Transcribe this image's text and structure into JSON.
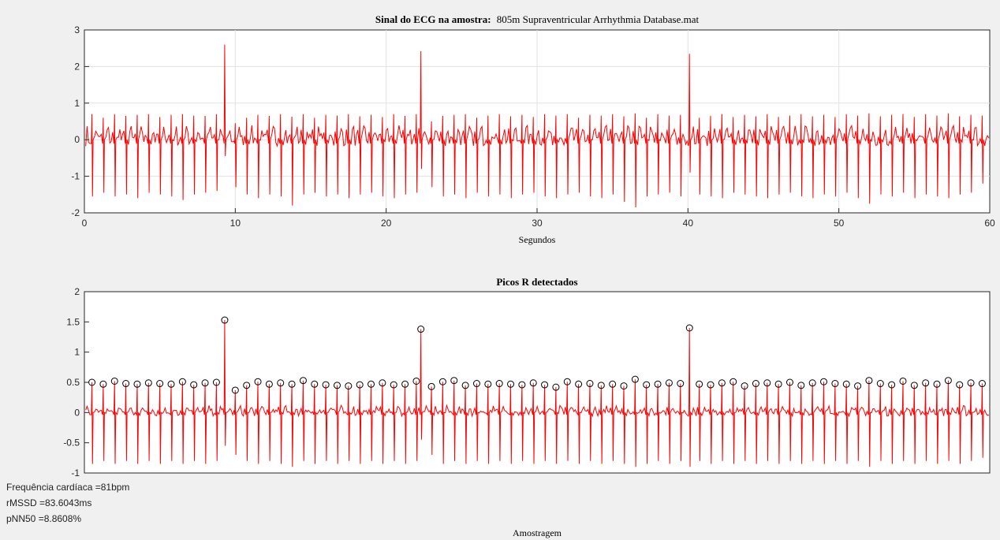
{
  "figure": {
    "background": "#f0f0f0",
    "axes_background": "#ffffff",
    "line_color": "#ff0000",
    "marker_color": "#000000",
    "grid_color": "#e1e1e1"
  },
  "stats": {
    "heart_rate": "Frequência cardíaca =81bpm",
    "rmssd": "rMSSD =83.6043ms",
    "pnn50": "pNN50 =8.8608%"
  },
  "chart_data": [
    {
      "type": "line",
      "title_bold": "Sinal do ECG na amostra:",
      "title_rest": "805m Supraventricular Arrhythmia Database.mat",
      "xlabel": "Segundos",
      "ylabel": "",
      "xlim": [
        0,
        60
      ],
      "ylim": [
        -2,
        3
      ],
      "xticks": [
        0,
        10,
        20,
        30,
        40,
        50,
        60
      ],
      "yticks": [
        -2,
        -1,
        0,
        1,
        2,
        3
      ],
      "grid": true,
      "series": [
        {
          "color": "#ff0000",
          "beat_times_s": [
            0.5,
            1.25,
            2.0,
            2.75,
            3.5,
            4.25,
            5.0,
            5.75,
            6.5,
            7.25,
            8.0,
            8.75,
            9.3,
            10.0,
            10.75,
            11.5,
            12.25,
            13.0,
            13.75,
            14.5,
            15.25,
            16.0,
            16.75,
            17.5,
            18.25,
            19.0,
            19.75,
            20.5,
            21.25,
            22.0,
            22.3,
            23.0,
            23.75,
            24.5,
            25.25,
            26.0,
            26.75,
            27.5,
            28.25,
            29.0,
            29.75,
            30.5,
            31.25,
            32.0,
            32.75,
            33.5,
            34.25,
            35.0,
            35.75,
            36.5,
            37.25,
            38.0,
            38.75,
            39.5,
            40.1,
            40.75,
            41.5,
            42.25,
            43.0,
            43.75,
            44.5,
            45.25,
            46.0,
            46.75,
            47.5,
            48.25,
            49.0,
            49.75,
            50.5,
            51.25,
            52.0,
            52.75,
            53.5,
            54.25,
            55.0,
            55.75,
            56.5,
            57.25,
            58.0,
            58.75,
            59.5
          ],
          "r_amplitudes": [
            0.7,
            0.6,
            0.7,
            0.65,
            0.68,
            0.7,
            0.62,
            0.68,
            0.7,
            0.66,
            0.65,
            0.7,
            2.6,
            0.45,
            0.6,
            0.68,
            0.65,
            0.7,
            0.63,
            0.7,
            0.6,
            0.68,
            0.66,
            0.7,
            0.64,
            0.68,
            0.62,
            0.7,
            0.65,
            0.7,
            2.42,
            0.5,
            0.65,
            0.68,
            0.7,
            0.6,
            0.66,
            0.7,
            0.64,
            0.68,
            0.62,
            0.7,
            0.66,
            0.7,
            0.6,
            0.68,
            0.66,
            0.7,
            0.64,
            0.72,
            0.6,
            0.7,
            0.66,
            0.68,
            2.35,
            0.6,
            0.65,
            0.7,
            0.62,
            0.68,
            0.64,
            0.7,
            0.62,
            0.66,
            0.7,
            0.64,
            0.68,
            0.62,
            0.7,
            0.66,
            0.72,
            0.64,
            0.68,
            0.7,
            0.62,
            0.7,
            0.66,
            0.72,
            0.64,
            0.68,
            0.66
          ],
          "s_amplitudes": [
            -1.55,
            -1.45,
            -1.55,
            -1.5,
            -1.6,
            -1.45,
            -1.5,
            -1.55,
            -1.65,
            -1.5,
            -1.45,
            -1.4,
            -0.45,
            -1.3,
            -1.5,
            -1.6,
            -1.5,
            -1.55,
            -1.8,
            -1.5,
            -1.45,
            -1.55,
            -1.5,
            -1.6,
            -1.5,
            -1.45,
            -1.55,
            -1.6,
            -1.5,
            -1.45,
            -0.8,
            -1.3,
            -1.55,
            -1.5,
            -1.6,
            -1.45,
            -1.55,
            -1.5,
            -1.6,
            -1.5,
            -1.45,
            -1.55,
            -1.6,
            -1.5,
            -1.45,
            -1.55,
            -1.6,
            -1.5,
            -1.7,
            -1.85,
            -1.55,
            -1.5,
            -1.45,
            -1.55,
            -0.9,
            -1.5,
            -1.55,
            -1.6,
            -1.45,
            -1.5,
            -1.55,
            -1.6,
            -1.5,
            -1.45,
            -1.55,
            -1.6,
            -1.5,
            -1.55,
            -1.45,
            -1.6,
            -1.75,
            -1.5,
            -1.55,
            -1.45,
            -1.6,
            -1.5,
            -1.55,
            -1.6,
            -1.5,
            -1.45,
            -1.2
          ]
        }
      ]
    },
    {
      "type": "line",
      "title": "Picos R detectados",
      "xlabel": "Amostragem",
      "ylabel": "",
      "xlim": [
        0,
        60
      ],
      "ylim": [
        -1,
        2
      ],
      "xticks": [],
      "yticks": [
        -1,
        -0.5,
        0,
        0.5,
        1,
        1.5,
        2
      ],
      "grid": false,
      "series": [
        {
          "color": "#ff0000",
          "beat_times": [
            0.5,
            1.25,
            2.0,
            2.75,
            3.5,
            4.25,
            5.0,
            5.75,
            6.5,
            7.25,
            8.0,
            8.75,
            9.3,
            10.0,
            10.75,
            11.5,
            12.25,
            13.0,
            13.75,
            14.5,
            15.25,
            16.0,
            16.75,
            17.5,
            18.25,
            19.0,
            19.75,
            20.5,
            21.25,
            22.0,
            22.3,
            23.0,
            23.75,
            24.5,
            25.25,
            26.0,
            26.75,
            27.5,
            28.25,
            29.0,
            29.75,
            30.5,
            31.25,
            32.0,
            32.75,
            33.5,
            34.25,
            35.0,
            35.75,
            36.5,
            37.25,
            38.0,
            38.75,
            39.5,
            40.1,
            40.75,
            41.5,
            42.25,
            43.0,
            43.75,
            44.5,
            45.25,
            46.0,
            46.75,
            47.5,
            48.25,
            49.0,
            49.75,
            50.5,
            51.25,
            52.0,
            52.75,
            53.5,
            54.25,
            55.0,
            55.75,
            56.5,
            57.25,
            58.0,
            58.75,
            59.5
          ],
          "peak_values": [
            0.5,
            0.47,
            0.52,
            0.48,
            0.47,
            0.49,
            0.48,
            0.47,
            0.51,
            0.46,
            0.49,
            0.5,
            1.53,
            0.37,
            0.45,
            0.51,
            0.47,
            0.49,
            0.47,
            0.53,
            0.47,
            0.46,
            0.45,
            0.44,
            0.46,
            0.47,
            0.49,
            0.46,
            0.47,
            0.52,
            1.38,
            0.43,
            0.51,
            0.53,
            0.45,
            0.48,
            0.47,
            0.48,
            0.47,
            0.46,
            0.49,
            0.46,
            0.42,
            0.51,
            0.47,
            0.48,
            0.45,
            0.47,
            0.44,
            0.55,
            0.46,
            0.47,
            0.49,
            0.48,
            1.4,
            0.47,
            0.46,
            0.49,
            0.51,
            0.44,
            0.48,
            0.49,
            0.47,
            0.5,
            0.45,
            0.49,
            0.51,
            0.48,
            0.47,
            0.44,
            0.53,
            0.48,
            0.46,
            0.52,
            0.45,
            0.49,
            0.47,
            0.53,
            0.46,
            0.49,
            0.48
          ],
          "s_values": [
            -0.85,
            -0.8,
            -0.85,
            -0.8,
            -0.85,
            -0.8,
            -0.85,
            -0.8,
            -0.85,
            -0.8,
            -0.85,
            -0.8,
            -0.55,
            -0.7,
            -0.8,
            -0.85,
            -0.8,
            -0.85,
            -0.9,
            -0.8,
            -0.85,
            -0.8,
            -0.85,
            -0.8,
            -0.85,
            -0.8,
            -0.85,
            -0.8,
            -0.85,
            -0.8,
            -0.45,
            -0.7,
            -0.85,
            -0.8,
            -0.85,
            -0.8,
            -0.85,
            -0.8,
            -0.85,
            -0.8,
            -0.85,
            -0.8,
            -0.85,
            -0.8,
            -0.85,
            -0.8,
            -0.85,
            -0.8,
            -0.85,
            -0.9,
            -0.85,
            -0.8,
            -0.85,
            -0.8,
            -0.9,
            -0.8,
            -0.85,
            -0.8,
            -0.85,
            -0.8,
            -0.85,
            -0.8,
            -0.85,
            -0.8,
            -0.85,
            -0.8,
            -0.85,
            -0.8,
            -0.85,
            -0.8,
            -0.9,
            -0.8,
            -0.85,
            -0.8,
            -0.85,
            -0.8,
            -0.85,
            -0.8,
            -0.85,
            -0.8,
            -0.75
          ]
        }
      ]
    }
  ]
}
